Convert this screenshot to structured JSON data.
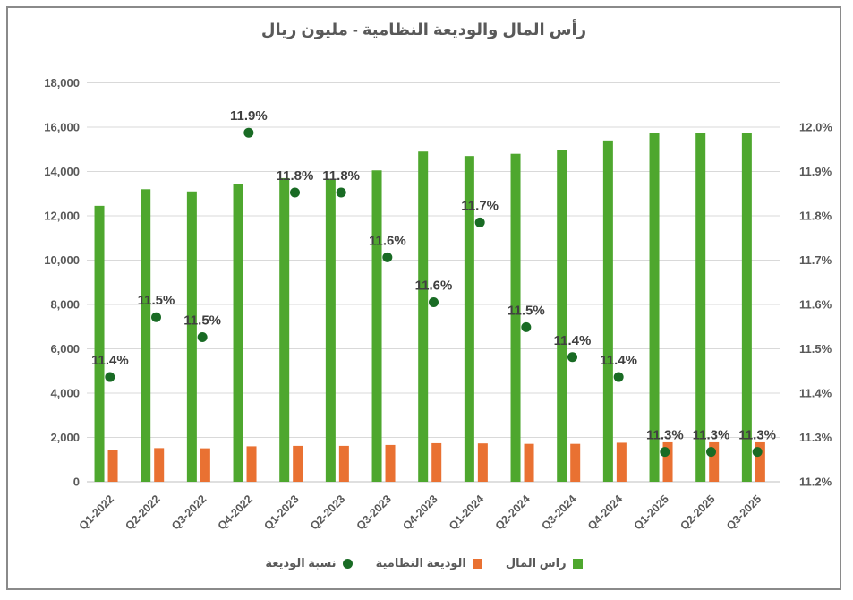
{
  "window": {
    "background": "#FFFFFF",
    "border_color": "#8A8A8A"
  },
  "chart_data": {
    "type": "combo-bar-scatter",
    "title": "رأس المال والوديعة النظامية - مليون ريال",
    "categories": [
      "Q1-2022",
      "Q2-2022",
      "Q3-2022",
      "Q4-2022",
      "Q1-2023",
      "Q2-2023",
      "Q3-2023",
      "Q4-2023",
      "Q1-2024",
      "Q2-2024",
      "Q3-2024",
      "Q4-2024",
      "Q1-2025",
      "Q2-2025",
      "Q3-2025"
    ],
    "series": [
      {
        "name": "راس المال",
        "type": "bar",
        "axis": "left",
        "color": "#4EA72E",
        "values": [
          12450,
          13200,
          13100,
          13450,
          13700,
          13670,
          14050,
          14900,
          14700,
          14800,
          14950,
          15400,
          15750,
          15750,
          15750
        ]
      },
      {
        "name": "الوديعة النظامية",
        "type": "bar",
        "axis": "left",
        "color": "#E97132",
        "values": [
          1420,
          1520,
          1510,
          1600,
          1620,
          1620,
          1660,
          1740,
          1730,
          1710,
          1710,
          1760,
          1780,
          1780,
          1780
        ]
      },
      {
        "name": "نسبة الوديعة",
        "type": "scatter",
        "axis": "right",
        "color": "#196B24",
        "values": [
          11.41,
          11.53,
          11.49,
          11.9,
          11.78,
          11.78,
          11.65,
          11.56,
          11.72,
          11.51,
          11.45,
          11.41,
          11.26,
          11.26,
          11.26
        ],
        "labels": [
          "11.4%",
          "11.5%",
          "11.5%",
          "11.9%",
          "11.8%",
          "11.8%",
          "11.6%",
          "11.6%",
          "11.7%",
          "11.5%",
          "11.4%",
          "11.4%",
          "11.3%",
          "11.3%",
          "11.3%"
        ]
      }
    ],
    "left_axis": {
      "min": 0,
      "max": 18000,
      "step": 2000,
      "tick_labels": [
        "0",
        "2,000",
        "4,000",
        "6,000",
        "8,000",
        "10,000",
        "12,000",
        "14,000",
        "16,000",
        "18,000"
      ]
    },
    "right_axis": {
      "min": 11.2,
      "max": 12.0,
      "step": 0.1,
      "tick_labels": [
        "11.2%",
        "11.3%",
        "11.4%",
        "11.5%",
        "11.6%",
        "11.7%",
        "11.8%",
        "11.9%",
        "12.0%"
      ]
    },
    "grid": true,
    "legend_position": "bottom"
  },
  "legend": [
    {
      "label": "نسبة الوديعة",
      "marker": "circle",
      "color": "#196B24"
    },
    {
      "label": "الوديعة النظامية",
      "marker": "square",
      "color": "#E97132"
    },
    {
      "label": "راس المال",
      "marker": "square",
      "color": "#4EA72E"
    }
  ],
  "style_colors": {
    "grid_line": "#D9D9D9",
    "zero_line": "#BFBFBF",
    "axis_text": "#595959",
    "data_label_text": "#404040",
    "title_text": "#595959"
  }
}
